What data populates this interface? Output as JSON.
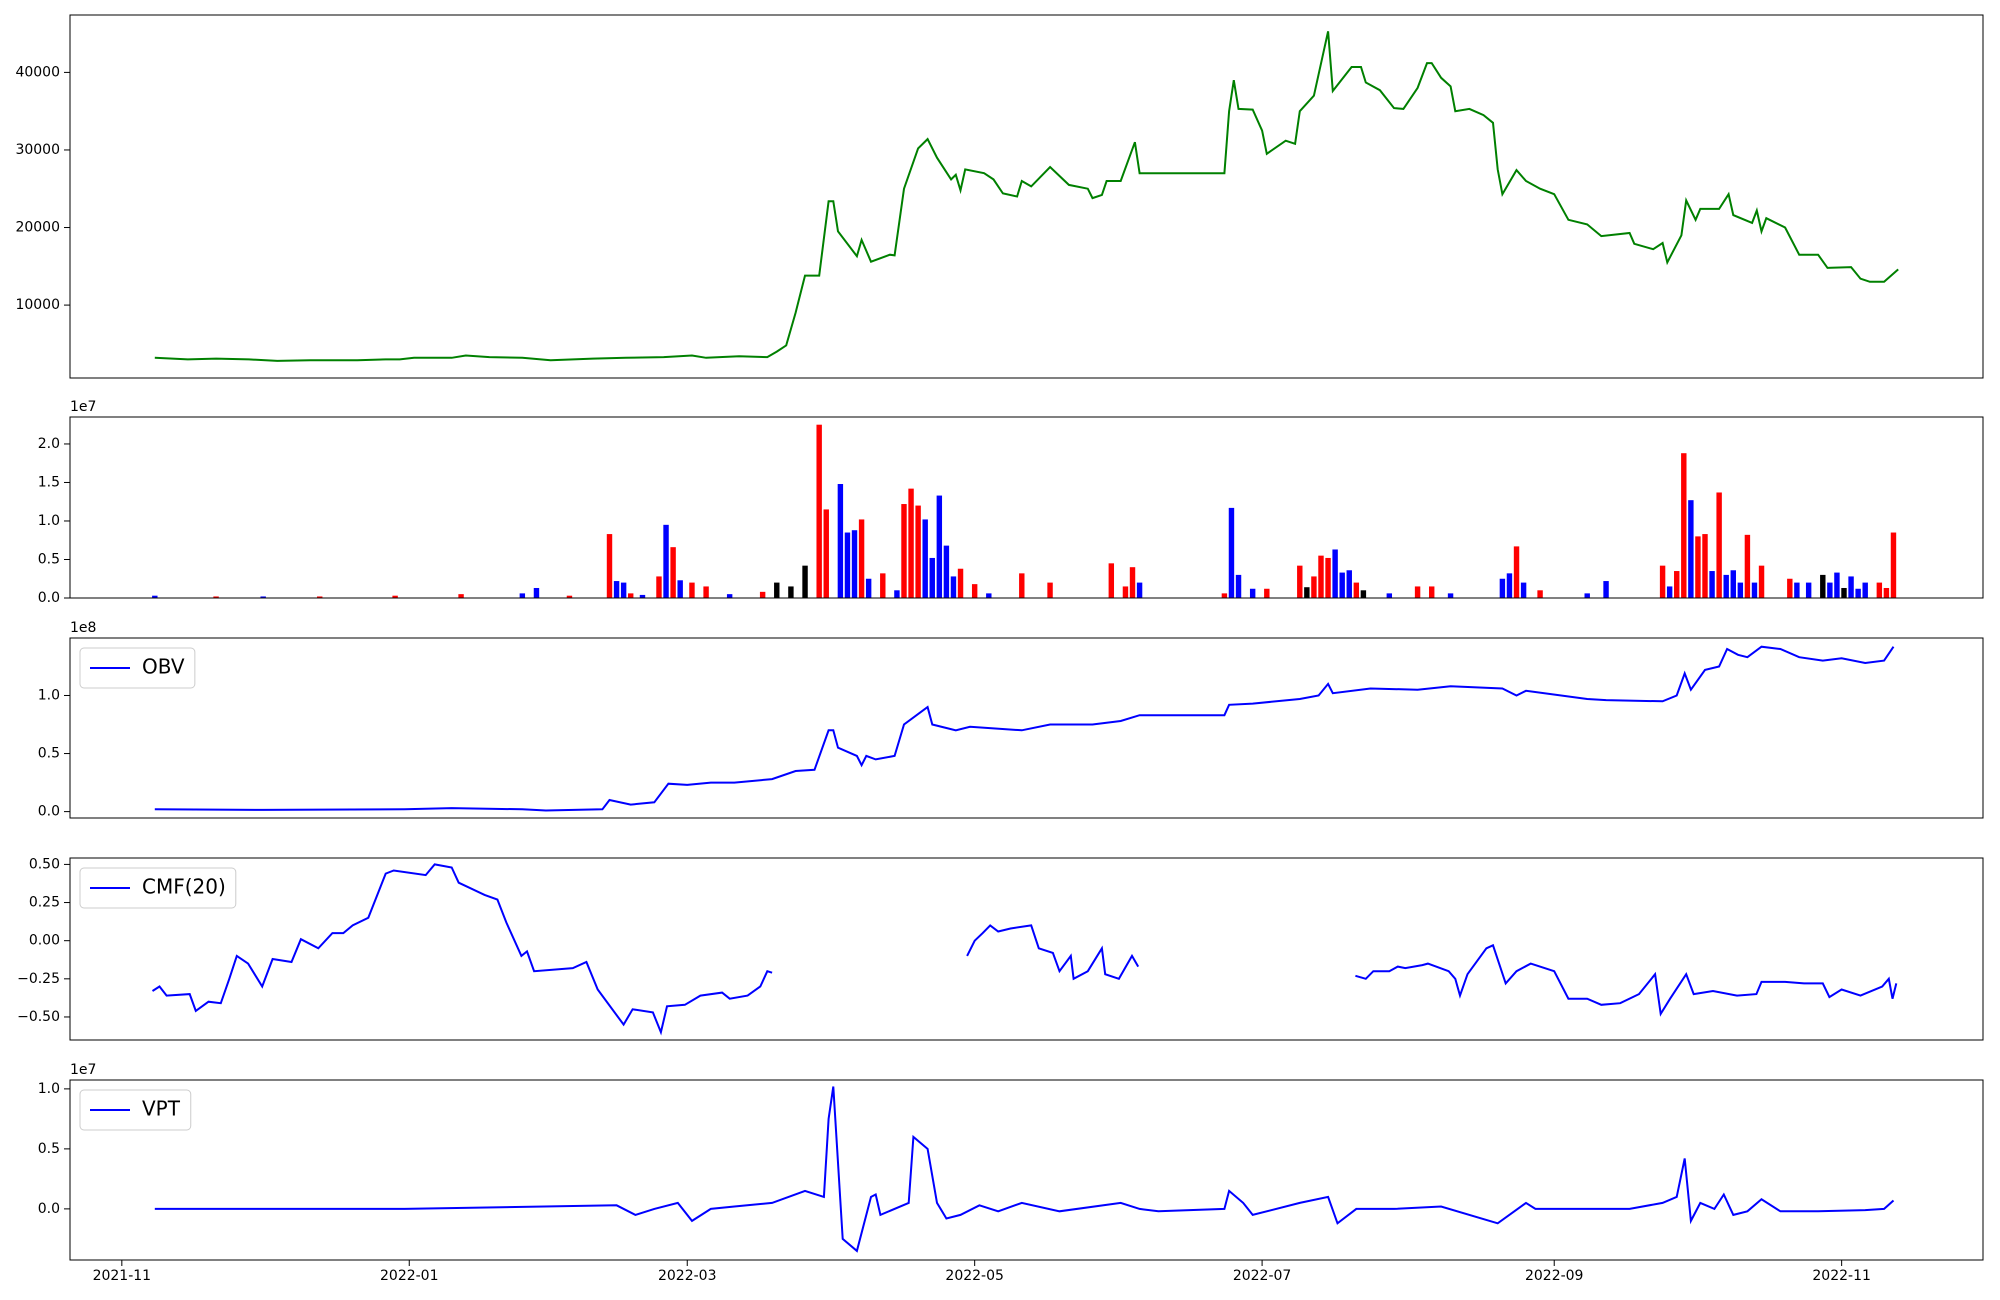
{
  "chart_data": [
    {
      "type": "line",
      "color": "green",
      "xlim": [
        -11,
        395
      ],
      "ylim": [
        600,
        47400
      ],
      "yticks": [
        10000,
        20000,
        30000,
        40000
      ],
      "x": [
        7,
        14,
        20,
        27,
        33,
        40,
        50,
        56,
        59,
        62,
        70,
        73,
        78,
        85,
        91,
        100,
        107,
        115,
        121,
        124,
        131,
        137,
        139,
        141,
        143,
        145,
        148,
        150,
        151,
        152,
        156,
        157,
        159,
        163,
        164,
        166,
        169,
        171,
        173,
        176,
        177,
        178,
        179,
        183,
        185,
        187,
        190,
        191,
        193,
        197,
        201,
        205,
        206,
        208,
        209,
        212,
        215,
        216,
        234,
        235,
        236,
        237,
        240,
        242,
        243,
        247,
        249,
        250,
        253,
        256,
        257,
        261,
        263,
        264,
        267,
        270,
        272,
        275,
        277,
        278,
        280,
        282,
        283,
        286,
        289,
        291,
        292,
        293,
        296,
        298,
        301,
        304,
        307,
        311,
        314,
        320,
        321,
        325,
        327,
        328,
        331,
        332,
        334,
        335,
        339,
        341,
        342,
        346,
        347,
        348,
        349,
        353,
        356,
        360,
        362,
        367,
        369,
        371,
        374,
        377
      ],
      "values": [
        3200,
        3000,
        3100,
        3000,
        2800,
        2900,
        2900,
        3000,
        3000,
        3200,
        3200,
        3500,
        3300,
        3200,
        2900,
        3100,
        3200,
        3300,
        3500,
        3200,
        3400,
        3300,
        4000,
        4800,
        9000,
        13800,
        13800,
        23400,
        23400,
        19500,
        16300,
        18400,
        15600,
        16500,
        16400,
        25000,
        30200,
        31400,
        29000,
        26200,
        26800,
        24800,
        27500,
        27000,
        26200,
        24400,
        24000,
        26000,
        25300,
        27800,
        25500,
        25000,
        23800,
        24200,
        26000,
        26000,
        31000,
        27000,
        27000,
        35000,
        39000,
        35300,
        35200,
        32500,
        29500,
        31200,
        30800,
        35000,
        37000,
        45300,
        37600,
        40700,
        40700,
        38700,
        37700,
        35400,
        35300,
        38000,
        41200,
        41200,
        39300,
        38200,
        35000,
        35300,
        34500,
        33500,
        27500,
        24300,
        27400,
        26000,
        25000,
        24300,
        21000,
        20400,
        18900,
        19300,
        17900,
        17200,
        18000,
        15500,
        19000,
        23500,
        21000,
        22400,
        22400,
        24300,
        21600,
        20600,
        22200,
        19500,
        21200,
        20000,
        16500,
        16500,
        14800,
        14900,
        13400,
        13000,
        13000,
        14600
      ]
    },
    {
      "type": "bar",
      "offset_label": "1e7",
      "xlim": [
        -11,
        395
      ],
      "ylim": [
        0,
        2.35
      ],
      "yticks": [
        {
          "value": 0,
          "label": "0.0"
        },
        0.5,
        {
          "value": 1,
          "label": "1.0"
        },
        1.5,
        {
          "value": 2,
          "label": "2.0"
        }
      ],
      "x": [
        7,
        20,
        30,
        42,
        58,
        72,
        85,
        88,
        95,
        103.5,
        105,
        106.5,
        108,
        110.5,
        114,
        115.5,
        117,
        118.5,
        121,
        124,
        129,
        136,
        139,
        142,
        145,
        148,
        149.5,
        152.5,
        154,
        155.5,
        157,
        158.5,
        161.5,
        164.5,
        166,
        167.5,
        169,
        170.5,
        172,
        173.5,
        175,
        176.5,
        178,
        181,
        184,
        191,
        197,
        210,
        213,
        214.5,
        216,
        234,
        235.5,
        237,
        240,
        243,
        250,
        251.5,
        253,
        254.5,
        256,
        257.5,
        259,
        260.5,
        262,
        263.5,
        269,
        275,
        278,
        282,
        293,
        294.5,
        296,
        297.5,
        301,
        311,
        315,
        327,
        328.5,
        330,
        331.5,
        333,
        334.5,
        336,
        337.5,
        339,
        340.5,
        342,
        343.5,
        345,
        346.5,
        348,
        354,
        355.5,
        358,
        361,
        362.5,
        364,
        365.5,
        367,
        368.5,
        370,
        373,
        374.5,
        376
      ],
      "values": [
        0.03,
        0.02,
        0.02,
        0.02,
        0.03,
        0.05,
        0.06,
        0.13,
        0.03,
        0.83,
        0.22,
        0.2,
        0.06,
        0.04,
        0.28,
        0.95,
        0.66,
        0.23,
        0.2,
        0.15,
        0.05,
        0.08,
        0.2,
        0.15,
        0.42,
        2.25,
        1.15,
        1.48,
        0.85,
        0.88,
        1.02,
        0.25,
        0.32,
        0.1,
        1.22,
        1.42,
        1.2,
        1.02,
        0.52,
        1.33,
        0.68,
        0.28,
        0.38,
        0.18,
        0.06,
        0.32,
        0.2,
        0.45,
        0.15,
        0.4,
        0.2,
        0.06,
        1.17,
        0.3,
        0.12,
        0.12,
        0.42,
        0.14,
        0.28,
        0.55,
        0.52,
        0.63,
        0.33,
        0.36,
        0.2,
        0.1,
        0.06,
        0.15,
        0.15,
        0.06,
        0.25,
        0.32,
        0.67,
        0.2,
        0.1,
        0.06,
        0.22,
        0.42,
        0.15,
        0.35,
        1.88,
        1.27,
        0.8,
        0.83,
        0.35,
        1.37,
        0.3,
        0.36,
        0.2,
        0.82,
        0.2,
        0.42,
        0.25,
        0.2,
        0.2,
        0.3,
        0.2,
        0.33,
        0.13,
        0.28,
        0.12,
        0.2,
        0.2,
        0.13,
        0.85
      ],
      "colors": [
        "blue",
        "red",
        "blue",
        "red",
        "red",
        "red",
        "blue",
        "blue",
        "red",
        "red",
        "blue",
        "blue",
        "red",
        "blue",
        "red",
        "blue",
        "red",
        "blue",
        "red",
        "red",
        "blue",
        "red",
        "black",
        "black",
        "black",
        "red",
        "red",
        "blue",
        "blue",
        "blue",
        "red",
        "blue",
        "red",
        "blue",
        "red",
        "red",
        "red",
        "blue",
        "blue",
        "blue",
        "blue",
        "blue",
        "red",
        "red",
        "blue",
        "red",
        "red",
        "red",
        "red",
        "red",
        "blue",
        "red",
        "blue",
        "blue",
        "blue",
        "red",
        "red",
        "black",
        "red",
        "red",
        "red",
        "blue",
        "blue",
        "blue",
        "red",
        "black",
        "blue",
        "red",
        "red",
        "blue",
        "blue",
        "blue",
        "red",
        "blue",
        "red",
        "blue",
        "blue",
        "red",
        "blue",
        "red",
        "red",
        "blue",
        "red",
        "red",
        "blue",
        "red",
        "blue",
        "blue",
        "blue",
        "red",
        "blue",
        "red",
        "red",
        "blue",
        "blue",
        "black",
        "blue",
        "blue",
        "black",
        "blue",
        "blue",
        "blue",
        "red",
        "red",
        "red"
      ]
    },
    {
      "type": "line",
      "offset_label": "1e8",
      "legend": "upper left",
      "xlim": [
        -11,
        395
      ],
      "ylim": [
        -0.055,
        1.495
      ],
      "yticks": [
        {
          "value": 0,
          "label": "0.0"
        },
        0.5,
        {
          "value": 1,
          "label": "1.0"
        }
      ],
      "x": [
        7,
        30,
        60,
        70,
        85,
        90,
        102,
        103.5,
        108,
        113,
        116,
        120,
        125,
        130,
        138,
        143,
        147,
        150,
        151,
        152,
        156,
        157,
        158,
        160,
        164,
        166,
        170,
        171,
        172,
        175,
        177,
        180,
        191,
        197,
        206,
        212,
        216,
        234,
        235,
        240,
        250,
        254,
        256,
        257,
        265,
        275,
        282,
        293,
        296,
        298,
        311,
        315,
        327,
        330,
        331.7,
        333,
        336,
        339,
        340.7,
        343,
        345,
        348,
        352,
        356,
        361,
        365,
        370,
        374,
        376
      ],
      "series": [
        {
          "name": "OBV",
          "color": "blue",
          "values": [
            0.02,
            0.015,
            0.02,
            0.03,
            0.02,
            0.01,
            0.02,
            0.1,
            0.06,
            0.08,
            0.24,
            0.23,
            0.25,
            0.25,
            0.28,
            0.35,
            0.36,
            0.7,
            0.7,
            0.55,
            0.48,
            0.4,
            0.48,
            0.45,
            0.48,
            0.75,
            0.87,
            0.9,
            0.75,
            0.72,
            0.7,
            0.73,
            0.7,
            0.75,
            0.75,
            0.78,
            0.83,
            0.83,
            0.92,
            0.93,
            0.97,
            1.0,
            1.1,
            1.02,
            1.06,
            1.05,
            1.08,
            1.06,
            1.0,
            1.04,
            0.97,
            0.96,
            0.95,
            1.0,
            1.19,
            1.05,
            1.22,
            1.25,
            1.4,
            1.35,
            1.33,
            1.42,
            1.4,
            1.33,
            1.3,
            1.32,
            1.28,
            1.3,
            1.42
          ]
        }
      ]
    },
    {
      "type": "line",
      "legend": "upper left",
      "xlim": [
        -11,
        395
      ],
      "ylim": [
        -0.651,
        0.542
      ],
      "yticks": [
        {
          "value": -0.5,
          "label": "−0.50"
        },
        {
          "value": -0.25,
          "label": "−0.25"
        },
        {
          "value": 0,
          "label": "0.00"
        },
        0.25,
        {
          "value": 0.5,
          "label": "0.50"
        }
      ],
      "x": [
        6.5,
        8,
        9.5,
        14.4,
        15.7,
        18.4,
        21,
        22.8,
        24.4,
        26.8,
        29.8,
        32,
        36,
        38,
        41.7,
        44.7,
        47,
        49,
        52.3,
        56,
        57.7,
        64.5,
        66.4,
        70,
        71.5,
        77,
        79.7,
        81.6,
        84.8,
        86,
        87.5,
        95.7,
        98.6,
        101,
        106.5,
        108.4,
        112.7,
        114.4,
        115.7,
        119.5,
        122.8,
        127.4,
        129,
        132.8,
        135.5,
        137,
        138,
        160,
        179.4,
        181,
        182.7,
        184.3,
        186,
        188.6,
        193,
        194.6,
        197.6,
        199,
        201.4,
        202,
        205,
        208,
        208.7,
        211.6,
        214.4,
        215.7,
        240,
        261.8,
        264,
        265.6,
        269,
        270.8,
        272.4,
        276,
        277.2,
        281.6,
        283,
        284,
        285.6,
        289.6,
        291,
        293.7,
        296,
        299,
        304,
        307,
        311,
        314,
        318,
        322,
        325.4,
        326.6,
        328.6,
        332,
        333.6,
        337.7,
        342.8,
        346.9,
        348,
        353,
        357,
        361,
        362.4,
        365,
        369,
        373.6,
        375,
        375.8,
        376.6
      ],
      "series": [
        {
          "name": "CMF(20)",
          "color": "blue",
          "values": [
            -0.33,
            -0.3,
            -0.36,
            -0.35,
            -0.46,
            -0.4,
            -0.41,
            -0.25,
            -0.1,
            -0.15,
            -0.3,
            -0.12,
            -0.14,
            0.01,
            -0.05,
            0.05,
            0.05,
            0.1,
            0.15,
            0.44,
            0.46,
            0.43,
            0.5,
            0.48,
            0.38,
            0.3,
            0.27,
            0.12,
            -0.1,
            -0.07,
            -0.2,
            -0.18,
            -0.14,
            -0.32,
            -0.55,
            -0.45,
            -0.47,
            -0.6,
            -0.43,
            -0.42,
            -0.36,
            -0.34,
            -0.38,
            -0.36,
            -0.3,
            -0.2,
            -0.21,
            null,
            -0.1,
            0.0,
            0.05,
            0.1,
            0.06,
            0.08,
            0.1,
            -0.05,
            -0.08,
            -0.2,
            -0.1,
            -0.25,
            -0.2,
            -0.05,
            -0.22,
            -0.25,
            -0.1,
            -0.17,
            null,
            -0.23,
            -0.25,
            -0.2,
            -0.2,
            -0.17,
            -0.18,
            -0.16,
            -0.15,
            -0.2,
            -0.25,
            -0.36,
            -0.22,
            -0.05,
            -0.03,
            -0.28,
            -0.2,
            -0.15,
            -0.2,
            -0.38,
            -0.38,
            -0.42,
            -0.41,
            -0.35,
            -0.22,
            -0.48,
            -0.38,
            -0.22,
            -0.35,
            -0.33,
            -0.36,
            -0.35,
            -0.27,
            -0.27,
            -0.28,
            -0.28,
            -0.37,
            -0.32,
            -0.36,
            -0.3,
            -0.25,
            -0.38,
            -0.28
          ]
        }
      ]
    },
    {
      "type": "line",
      "offset_label": "1e7",
      "legend": "upper left",
      "xlim": [
        -11,
        395
      ],
      "ylim": [
        -0.426,
        1.074
      ],
      "yticks": [
        {
          "value": 0,
          "label": "0.0"
        },
        0.5,
        {
          "value": 1,
          "label": "1.0"
        }
      ],
      "xticks": [
        {
          "value": 0,
          "label": "2021-11"
        },
        {
          "value": 61,
          "label": "2022-01"
        },
        {
          "value": 120,
          "label": "2022-03"
        },
        {
          "value": 181,
          "label": "2022-05"
        },
        {
          "value": 242,
          "label": "2022-07"
        },
        {
          "value": 304,
          "label": "2022-09"
        },
        {
          "value": 365,
          "label": "2022-11"
        }
      ],
      "x": [
        7,
        60,
        105,
        109,
        113,
        118,
        121,
        125,
        130,
        138,
        145,
        149,
        150,
        151,
        153,
        156,
        159,
        160,
        161,
        167,
        168,
        171,
        173,
        175,
        178,
        182,
        186,
        191,
        199,
        212,
        216,
        220,
        234,
        235,
        238,
        240,
        250,
        256,
        258,
        262,
        270,
        280,
        292,
        298,
        300,
        320,
        327,
        330,
        331.7,
        333,
        335,
        338,
        340,
        342,
        345,
        348,
        352,
        360,
        370,
        374,
        376
      ],
      "series": [
        {
          "name": "VPT",
          "color": "blue",
          "values": [
            0,
            0,
            0.03,
            -0.05,
            0,
            0.05,
            -0.1,
            0,
            0.02,
            0.05,
            0.15,
            0.1,
            0.75,
            1.02,
            -0.25,
            -0.35,
            0.1,
            0.12,
            -0.05,
            0.05,
            0.6,
            0.5,
            0.05,
            -0.08,
            -0.05,
            0.03,
            -0.02,
            0.05,
            -0.02,
            0.05,
            0,
            -0.02,
            0,
            0.15,
            0.05,
            -0.05,
            0.05,
            0.1,
            -0.12,
            0,
            0,
            0.02,
            -0.12,
            0.05,
            0,
            0,
            0.05,
            0.1,
            0.42,
            -0.1,
            0.05,
            0,
            0.12,
            -0.05,
            -0.02,
            0.08,
            -0.02,
            -0.02,
            -0.01,
            0,
            0.07
          ]
        }
      ]
    }
  ]
}
